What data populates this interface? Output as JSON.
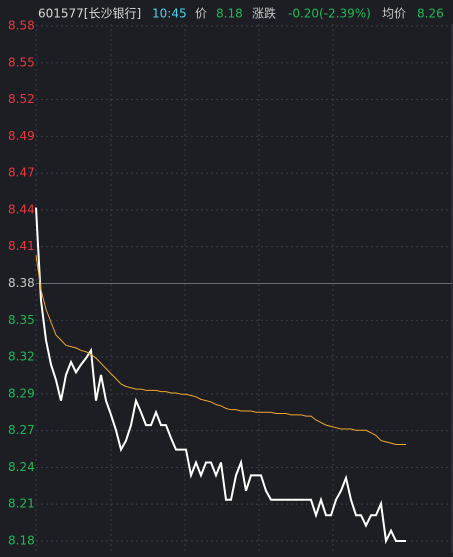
{
  "header": {
    "code": "601577[长沙银行]",
    "time": "10:45",
    "price_label": "价",
    "price": "8.18",
    "change_label": "涨跌",
    "change": "-0.20(-2.39%)",
    "avg_label": "均价",
    "avg": "8.26"
  },
  "chart_data": {
    "type": "line",
    "ylim": [
      8.18,
      8.58
    ],
    "yticks": [
      8.58,
      {
        "value": 8.5514,
        "label": "8.55"
      },
      {
        "value": 8.5229,
        "label": "8.52"
      },
      {
        "value": 8.4943,
        "label": "8.49"
      },
      {
        "value": 8.4657,
        "label": "8.47"
      },
      {
        "value": 8.4371,
        "label": "8.44"
      },
      {
        "value": 8.4086,
        "label": "8.41"
      },
      8.38,
      {
        "value": 8.3514,
        "label": "8.35"
      },
      {
        "value": 8.3229,
        "label": "8.32"
      },
      {
        "value": 8.2943,
        "label": "8.29"
      },
      {
        "value": 8.2657,
        "label": "8.27"
      },
      {
        "value": 8.2371,
        "label": "8.24"
      },
      {
        "value": 8.2086,
        "label": "8.21"
      },
      8.18
    ],
    "tick_colors": [
      "#e8383d",
      "#e8383d",
      "#e8383d",
      "#e8383d",
      "#e8383d",
      "#e8383d",
      "#e8383d",
      "#c8c8c8",
      "#1fb954",
      "#1fb954",
      "#1fb954",
      "#1fb954",
      "#1fb954",
      "#1fb954",
      "#1fb954"
    ],
    "grid": true,
    "series": [
      {
        "name": "价",
        "color": "#ffffff",
        "values": [
          8.439,
          8.367,
          8.336,
          8.317,
          8.305,
          8.289,
          8.309,
          8.319,
          8.311,
          8.317,
          8.322,
          8.328,
          8.289,
          8.309,
          8.289,
          8.278,
          8.266,
          8.251,
          8.258,
          8.27,
          8.289,
          8.28,
          8.27,
          8.27,
          8.28,
          8.27,
          8.27,
          8.26,
          8.251,
          8.251,
          8.251,
          8.231,
          8.241,
          8.231,
          8.241,
          8.241,
          8.231,
          8.241,
          8.212,
          8.212,
          8.231,
          8.241,
          8.219,
          8.231,
          8.231,
          8.231,
          8.219,
          8.212,
          8.212,
          8.212,
          8.212,
          8.212,
          8.212,
          8.212,
          8.212,
          8.212,
          8.2,
          8.212,
          8.2,
          8.2,
          8.212,
          8.219,
          8.229,
          8.212,
          8.2,
          8.2,
          8.192,
          8.2,
          8.2,
          8.209,
          8.18,
          8.188,
          8.18,
          8.18,
          8.18
        ]
      },
      {
        "name": "均价",
        "color": "#f0a830",
        "values": [
          8.402,
          8.375,
          8.36,
          8.35,
          8.34,
          8.336,
          8.332,
          8.331,
          8.33,
          8.328,
          8.327,
          8.325,
          8.322,
          8.318,
          8.314,
          8.31,
          8.306,
          8.302,
          8.3,
          8.299,
          8.298,
          8.298,
          8.297,
          8.297,
          8.297,
          8.296,
          8.296,
          8.295,
          8.295,
          8.294,
          8.294,
          8.293,
          8.292,
          8.29,
          8.289,
          8.288,
          8.286,
          8.285,
          8.283,
          8.282,
          8.282,
          8.281,
          8.281,
          8.281,
          8.28,
          8.28,
          8.28,
          8.28,
          8.279,
          8.279,
          8.279,
          8.278,
          8.278,
          8.278,
          8.277,
          8.277,
          8.274,
          8.272,
          8.27,
          8.269,
          8.268,
          8.267,
          8.267,
          8.267,
          8.266,
          8.266,
          8.266,
          8.264,
          8.262,
          8.258,
          8.257,
          8.256,
          8.255,
          8.255,
          8.255
        ]
      }
    ]
  }
}
